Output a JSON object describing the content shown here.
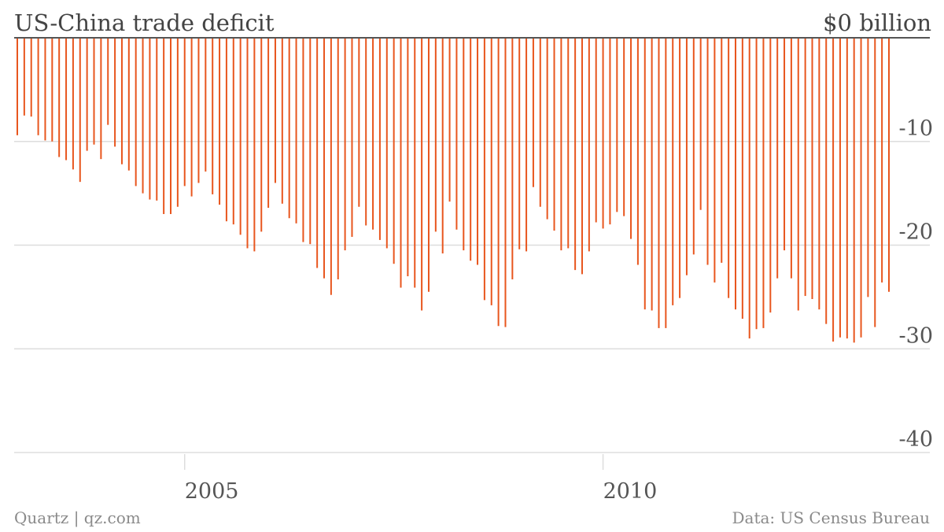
{
  "header": {
    "title": "US-China trade deficit",
    "unit_label": "$0 billion"
  },
  "footer": {
    "source_left": "Quartz | qz.com",
    "source_right": "Data: US Census Bureau"
  },
  "colors": {
    "bar": "#e8561e",
    "grid": "#dddddd",
    "axis_line": "#555555",
    "text": "#555555"
  },
  "chart_data": {
    "type": "bar",
    "title": "US-China trade deficit",
    "xlabel": "",
    "ylabel": "",
    "ylim": [
      -40,
      0
    ],
    "y_ticks": [
      -10,
      -20,
      -30,
      -40
    ],
    "y_tick_labels": [
      "-10",
      "-20",
      "-30",
      "-40"
    ],
    "x_ticks": [
      "2005",
      "2010"
    ],
    "x_range": [
      "2003-01",
      "2013-06"
    ],
    "frequency": "monthly",
    "grid": true,
    "x": [
      "2003-01",
      "2003-02",
      "2003-03",
      "2003-04",
      "2003-05",
      "2003-06",
      "2003-07",
      "2003-08",
      "2003-09",
      "2003-10",
      "2003-11",
      "2003-12",
      "2004-01",
      "2004-02",
      "2004-03",
      "2004-04",
      "2004-05",
      "2004-06",
      "2004-07",
      "2004-08",
      "2004-09",
      "2004-10",
      "2004-11",
      "2004-12",
      "2005-01",
      "2005-02",
      "2005-03",
      "2005-04",
      "2005-05",
      "2005-06",
      "2005-07",
      "2005-08",
      "2005-09",
      "2005-10",
      "2005-11",
      "2005-12",
      "2006-01",
      "2006-02",
      "2006-03",
      "2006-04",
      "2006-05",
      "2006-06",
      "2006-07",
      "2006-08",
      "2006-09",
      "2006-10",
      "2006-11",
      "2006-12",
      "2007-01",
      "2007-02",
      "2007-03",
      "2007-04",
      "2007-05",
      "2007-06",
      "2007-07",
      "2007-08",
      "2007-09",
      "2007-10",
      "2007-11",
      "2007-12",
      "2008-01",
      "2008-02",
      "2008-03",
      "2008-04",
      "2008-05",
      "2008-06",
      "2008-07",
      "2008-08",
      "2008-09",
      "2008-10",
      "2008-11",
      "2008-12",
      "2009-01",
      "2009-02",
      "2009-03",
      "2009-04",
      "2009-05",
      "2009-06",
      "2009-07",
      "2009-08",
      "2009-09",
      "2009-10",
      "2009-11",
      "2009-12",
      "2010-01",
      "2010-02",
      "2010-03",
      "2010-04",
      "2010-05",
      "2010-06",
      "2010-07",
      "2010-08",
      "2010-09",
      "2010-10",
      "2010-11",
      "2010-12",
      "2011-01",
      "2011-02",
      "2011-03",
      "2011-04",
      "2011-05",
      "2011-06",
      "2011-07",
      "2011-08",
      "2011-09",
      "2011-10",
      "2011-11",
      "2011-12",
      "2012-01",
      "2012-02",
      "2012-03",
      "2012-04",
      "2012-05",
      "2012-06",
      "2012-07",
      "2012-08",
      "2012-09",
      "2012-10",
      "2012-11",
      "2012-12",
      "2013-01",
      "2013-02",
      "2013-03",
      "2013-04",
      "2013-05",
      "2013-06"
    ],
    "series": [
      {
        "values": [
          -9.4,
          -7.5,
          -7.6,
          -9.4,
          -9.9,
          -10.0,
          -11.5,
          -11.8,
          -12.7,
          -13.9,
          -10.9,
          -10.3,
          -11.7,
          -8.4,
          -10.5,
          -12.2,
          -12.8,
          -14.3,
          -15.0,
          -15.6,
          -15.7,
          -17.0,
          -17.0,
          -16.3,
          -14.3,
          -15.3,
          -14.0,
          -12.9,
          -15.1,
          -16.1,
          -17.7,
          -18.0,
          -19.0,
          -20.3,
          -20.6,
          -18.7,
          -16.4,
          -14.0,
          -16.0,
          -17.4,
          -17.9,
          -19.7,
          -19.9,
          -22.2,
          -23.2,
          -24.8,
          -23.3,
          -20.5,
          -19.2,
          -16.3,
          -18.1,
          -18.5,
          -19.5,
          -20.3,
          -21.8,
          -24.1,
          -23.0,
          -24.1,
          -26.3,
          -24.5,
          -18.7,
          -20.8,
          -15.8,
          -18.5,
          -20.5,
          -21.5,
          -21.9,
          -25.3,
          -25.8,
          -27.8,
          -27.9,
          -23.3,
          -20.4,
          -20.6,
          -14.4,
          -16.3,
          -17.5,
          -18.6,
          -20.5,
          -20.3,
          -22.4,
          -22.8,
          -20.6,
          -17.8,
          -18.4,
          -18.0,
          -16.8,
          -17.2,
          -19.4,
          -21.9,
          -26.2,
          -26.3,
          -28.0,
          -28.0,
          -25.8,
          -25.1,
          -22.9,
          -20.9,
          -16.6,
          -21.9,
          -23.6,
          -21.7,
          -25.1,
          -26.2,
          -27.1,
          -29.0,
          -28.1,
          -28.0,
          -26.5,
          -23.2,
          -20.5,
          -23.2,
          -26.3,
          -24.9,
          -25.2,
          -26.2,
          -27.6,
          -29.3,
          -28.9,
          -29.0,
          -29.4,
          -28.9,
          -25.0,
          -27.9,
          -23.6,
          -24.5
        ]
      }
    ]
  }
}
